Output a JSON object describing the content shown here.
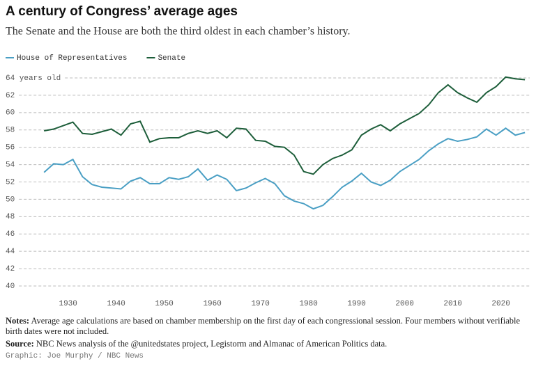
{
  "chart_data": {
    "type": "line",
    "title": "A century of Congress’ average ages",
    "subtitle": "The Senate and the House are both the third oldest in each chamber’s history.",
    "x": [
      1925,
      1927,
      1929,
      1931,
      1933,
      1935,
      1937,
      1939,
      1941,
      1943,
      1945,
      1947,
      1949,
      1951,
      1953,
      1955,
      1957,
      1959,
      1961,
      1963,
      1965,
      1967,
      1969,
      1971,
      1973,
      1975,
      1977,
      1979,
      1981,
      1983,
      1985,
      1987,
      1989,
      1991,
      1993,
      1995,
      1997,
      1999,
      2001,
      2003,
      2005,
      2007,
      2009,
      2011,
      2013,
      2015,
      2017,
      2019,
      2021,
      2023,
      2025
    ],
    "series": [
      {
        "name": "House of Representatives",
        "color": "#4a9fc4",
        "values": [
          53.1,
          54.1,
          54.0,
          54.6,
          52.6,
          51.7,
          51.4,
          51.3,
          51.2,
          52.1,
          52.5,
          51.8,
          51.8,
          52.5,
          52.3,
          52.6,
          53.5,
          52.2,
          52.8,
          52.3,
          51.0,
          51.3,
          51.9,
          52.4,
          51.8,
          50.4,
          49.8,
          49.5,
          48.9,
          49.3,
          50.3,
          51.4,
          52.1,
          53.0,
          52.0,
          51.6,
          52.2,
          53.2,
          53.9,
          54.6,
          55.6,
          56.4,
          57.0,
          56.7,
          56.9,
          57.2,
          58.1,
          57.4,
          58.2,
          57.4,
          57.7
        ]
      },
      {
        "name": "Senate",
        "color": "#1d5e3a",
        "values": [
          57.9,
          58.1,
          58.5,
          58.9,
          57.6,
          57.5,
          57.8,
          58.1,
          57.4,
          58.7,
          59.0,
          56.6,
          57.0,
          57.1,
          57.1,
          57.6,
          57.9,
          57.6,
          57.9,
          57.1,
          58.2,
          58.1,
          56.8,
          56.7,
          56.1,
          56.0,
          55.1,
          53.2,
          52.9,
          54.0,
          54.7,
          55.1,
          55.7,
          57.4,
          58.1,
          58.6,
          57.9,
          58.7,
          59.3,
          59.9,
          60.9,
          62.3,
          63.2,
          62.3,
          61.7,
          61.2,
          62.3,
          63.0,
          64.1,
          63.9,
          63.8
        ]
      }
    ],
    "xlim": [
      1917,
      2026
    ],
    "xticks": [
      1930,
      1940,
      1950,
      1960,
      1970,
      1980,
      1990,
      2000,
      2010,
      2020
    ],
    "ylim": [
      40,
      64
    ],
    "yticks": [
      40,
      42,
      44,
      46,
      48,
      50,
      52,
      54,
      56,
      58,
      60,
      62,
      {
        "value": 64,
        "label": "64 years old"
      }
    ],
    "grid": true,
    "legend": "top-left"
  },
  "footer": {
    "notes_label": "Notes:",
    "notes_text": "Average age calculations are based on chamber membership on the first day of each congressional session. Four members without verifiable birth dates were not included.",
    "source_label": "Source:",
    "source_text": "NBC News analysis of the @unitedstates project, Legistorm and Almanac of American Politics data.",
    "credit": "Graphic: Joe Murphy / NBC News"
  }
}
